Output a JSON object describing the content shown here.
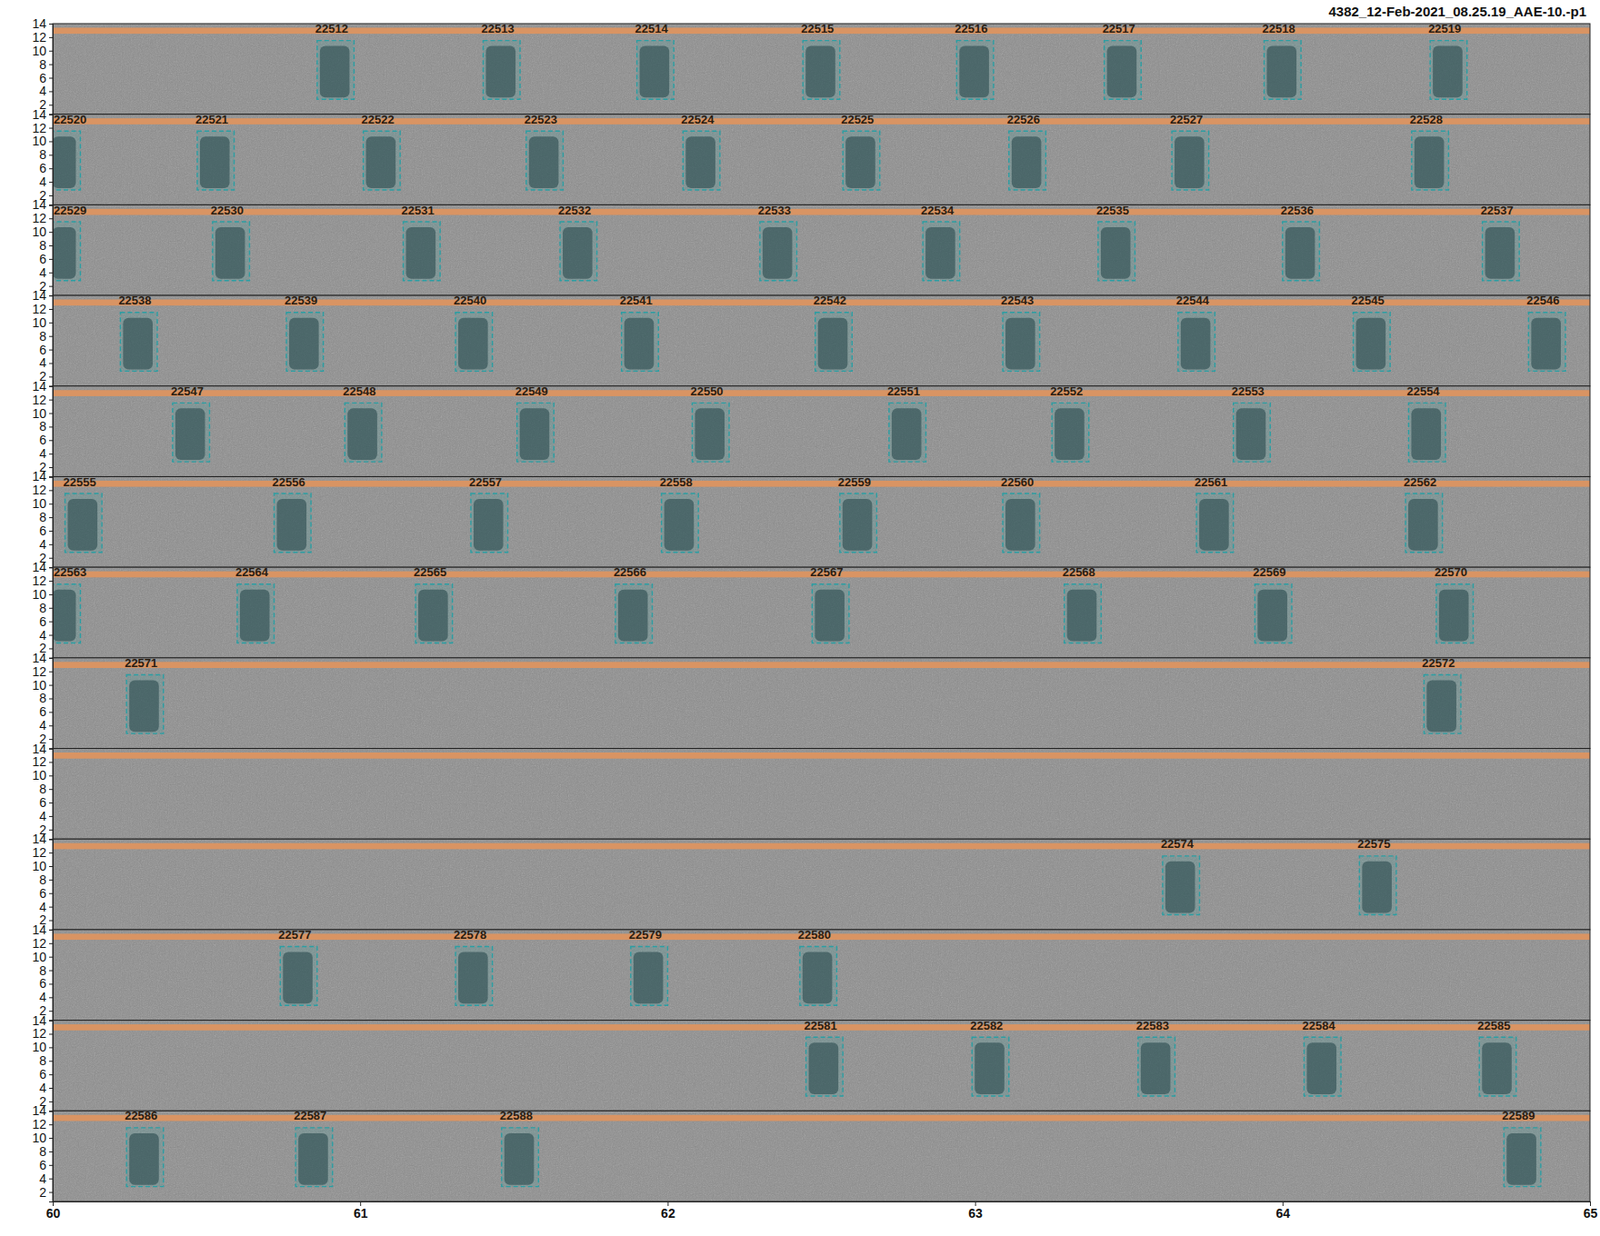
{
  "chart_data": {
    "type": "spectrogram",
    "title": "4382_12-Feb-2021_08.25.19_AAE-10.-p1",
    "color": "#2b9ea3",
    "xlim": [
      60,
      65
    ],
    "xticks": [
      60,
      61,
      62,
      63,
      64,
      65
    ],
    "ylim": [
      0.6,
      14
    ],
    "yticks": [
      2,
      4,
      6,
      8,
      10,
      12,
      14
    ],
    "band_freq": [
      12.5,
      13.4
    ],
    "box_freq": [
      2.8,
      11.5
    ],
    "strips": [
      {
        "boxes": [
          {
            "label": "22512",
            "t0": 60.86,
            "t1": 60.98
          },
          {
            "label": "22513",
            "t0": 61.4,
            "t1": 61.52
          },
          {
            "label": "22514",
            "t0": 61.9,
            "t1": 62.02
          },
          {
            "label": "22515",
            "t0": 62.44,
            "t1": 62.56
          },
          {
            "label": "22516",
            "t0": 62.94,
            "t1": 63.06
          },
          {
            "label": "22517",
            "t0": 63.42,
            "t1": 63.54
          },
          {
            "label": "22518",
            "t0": 63.94,
            "t1": 64.06
          },
          {
            "label": "22519",
            "t0": 64.48,
            "t1": 64.6
          }
        ]
      },
      {
        "boxes": [
          {
            "label": "22520",
            "t0": 59.99,
            "t1": 60.09
          },
          {
            "label": "22521",
            "t0": 60.47,
            "t1": 60.59
          },
          {
            "label": "22522",
            "t0": 61.01,
            "t1": 61.13
          },
          {
            "label": "22523",
            "t0": 61.54,
            "t1": 61.66
          },
          {
            "label": "22524",
            "t0": 62.05,
            "t1": 62.17
          },
          {
            "label": "22525",
            "t0": 62.57,
            "t1": 62.69
          },
          {
            "label": "22526",
            "t0": 63.11,
            "t1": 63.23
          },
          {
            "label": "22527",
            "t0": 63.64,
            "t1": 63.76
          },
          {
            "label": "22528",
            "t0": 64.42,
            "t1": 64.54
          }
        ]
      },
      {
        "boxes": [
          {
            "label": "22529",
            "t0": 59.99,
            "t1": 60.09
          },
          {
            "label": "22530",
            "t0": 60.52,
            "t1": 60.64
          },
          {
            "label": "22531",
            "t0": 61.14,
            "t1": 61.26
          },
          {
            "label": "22532",
            "t0": 61.65,
            "t1": 61.77
          },
          {
            "label": "22533",
            "t0": 62.3,
            "t1": 62.42
          },
          {
            "label": "22534",
            "t0": 62.83,
            "t1": 62.95
          },
          {
            "label": "22535",
            "t0": 63.4,
            "t1": 63.52
          },
          {
            "label": "22536",
            "t0": 64.0,
            "t1": 64.12
          },
          {
            "label": "22537",
            "t0": 64.65,
            "t1": 64.77
          }
        ]
      },
      {
        "boxes": [
          {
            "label": "22538",
            "t0": 60.22,
            "t1": 60.34
          },
          {
            "label": "22539",
            "t0": 60.76,
            "t1": 60.88
          },
          {
            "label": "22540",
            "t0": 61.31,
            "t1": 61.43
          },
          {
            "label": "22541",
            "t0": 61.85,
            "t1": 61.97
          },
          {
            "label": "22542",
            "t0": 62.48,
            "t1": 62.6
          },
          {
            "label": "22543",
            "t0": 63.09,
            "t1": 63.21
          },
          {
            "label": "22544",
            "t0": 63.66,
            "t1": 63.78
          },
          {
            "label": "22545",
            "t0": 64.23,
            "t1": 64.35
          },
          {
            "label": "22546",
            "t0": 64.8,
            "t1": 64.92
          }
        ]
      },
      {
        "boxes": [
          {
            "label": "22547",
            "t0": 60.39,
            "t1": 60.51
          },
          {
            "label": "22548",
            "t0": 60.95,
            "t1": 61.07
          },
          {
            "label": "22549",
            "t0": 61.51,
            "t1": 61.63
          },
          {
            "label": "22550",
            "t0": 62.08,
            "t1": 62.2
          },
          {
            "label": "22551",
            "t0": 62.72,
            "t1": 62.84
          },
          {
            "label": "22552",
            "t0": 63.25,
            "t1": 63.37
          },
          {
            "label": "22553",
            "t0": 63.84,
            "t1": 63.96
          },
          {
            "label": "22554",
            "t0": 64.41,
            "t1": 64.53
          }
        ]
      },
      {
        "boxes": [
          {
            "label": "22555",
            "t0": 60.04,
            "t1": 60.16
          },
          {
            "label": "22556",
            "t0": 60.72,
            "t1": 60.84
          },
          {
            "label": "22557",
            "t0": 61.36,
            "t1": 61.48
          },
          {
            "label": "22558",
            "t0": 61.98,
            "t1": 62.1
          },
          {
            "label": "22559",
            "t0": 62.56,
            "t1": 62.68
          },
          {
            "label": "22560",
            "t0": 63.09,
            "t1": 63.21
          },
          {
            "label": "22561",
            "t0": 63.72,
            "t1": 63.84
          },
          {
            "label": "22562",
            "t0": 64.4,
            "t1": 64.52
          }
        ]
      },
      {
        "boxes": [
          {
            "label": "22563",
            "t0": 59.99,
            "t1": 60.09
          },
          {
            "label": "22564",
            "t0": 60.6,
            "t1": 60.72
          },
          {
            "label": "22565",
            "t0": 61.18,
            "t1": 61.3
          },
          {
            "label": "22566",
            "t0": 61.83,
            "t1": 61.95
          },
          {
            "label": "22567",
            "t0": 62.47,
            "t1": 62.59
          },
          {
            "label": "22568",
            "t0": 63.29,
            "t1": 63.41
          },
          {
            "label": "22569",
            "t0": 63.91,
            "t1": 64.03
          },
          {
            "label": "22570",
            "t0": 64.5,
            "t1": 64.62
          }
        ]
      },
      {
        "boxes": [
          {
            "label": "22571",
            "t0": 60.24,
            "t1": 60.36
          },
          {
            "label": "22572",
            "t0": 64.46,
            "t1": 64.58
          }
        ]
      },
      {
        "boxes": []
      },
      {
        "boxes": [
          {
            "label": "22574",
            "t0": 63.61,
            "t1": 63.73
          },
          {
            "label": "22575",
            "t0": 64.25,
            "t1": 64.37
          }
        ]
      },
      {
        "boxes": [
          {
            "label": "22577",
            "t0": 60.74,
            "t1": 60.86
          },
          {
            "label": "22578",
            "t0": 61.31,
            "t1": 61.43
          },
          {
            "label": "22579",
            "t0": 61.88,
            "t1": 62.0
          },
          {
            "label": "22580",
            "t0": 62.43,
            "t1": 62.55
          }
        ]
      },
      {
        "boxes": [
          {
            "label": "22581",
            "t0": 62.45,
            "t1": 62.57
          },
          {
            "label": "22582",
            "t0": 62.99,
            "t1": 63.11
          },
          {
            "label": "22583",
            "t0": 63.53,
            "t1": 63.65
          },
          {
            "label": "22584",
            "t0": 64.07,
            "t1": 64.19
          },
          {
            "label": "22585",
            "t0": 64.64,
            "t1": 64.76
          }
        ]
      },
      {
        "boxes": [
          {
            "label": "22586",
            "t0": 60.24,
            "t1": 60.36
          },
          {
            "label": "22587",
            "t0": 60.79,
            "t1": 60.91
          },
          {
            "label": "22588",
            "t0": 61.46,
            "t1": 61.58
          },
          {
            "label": "22589",
            "t0": 64.72,
            "t1": 64.84
          }
        ]
      }
    ]
  }
}
